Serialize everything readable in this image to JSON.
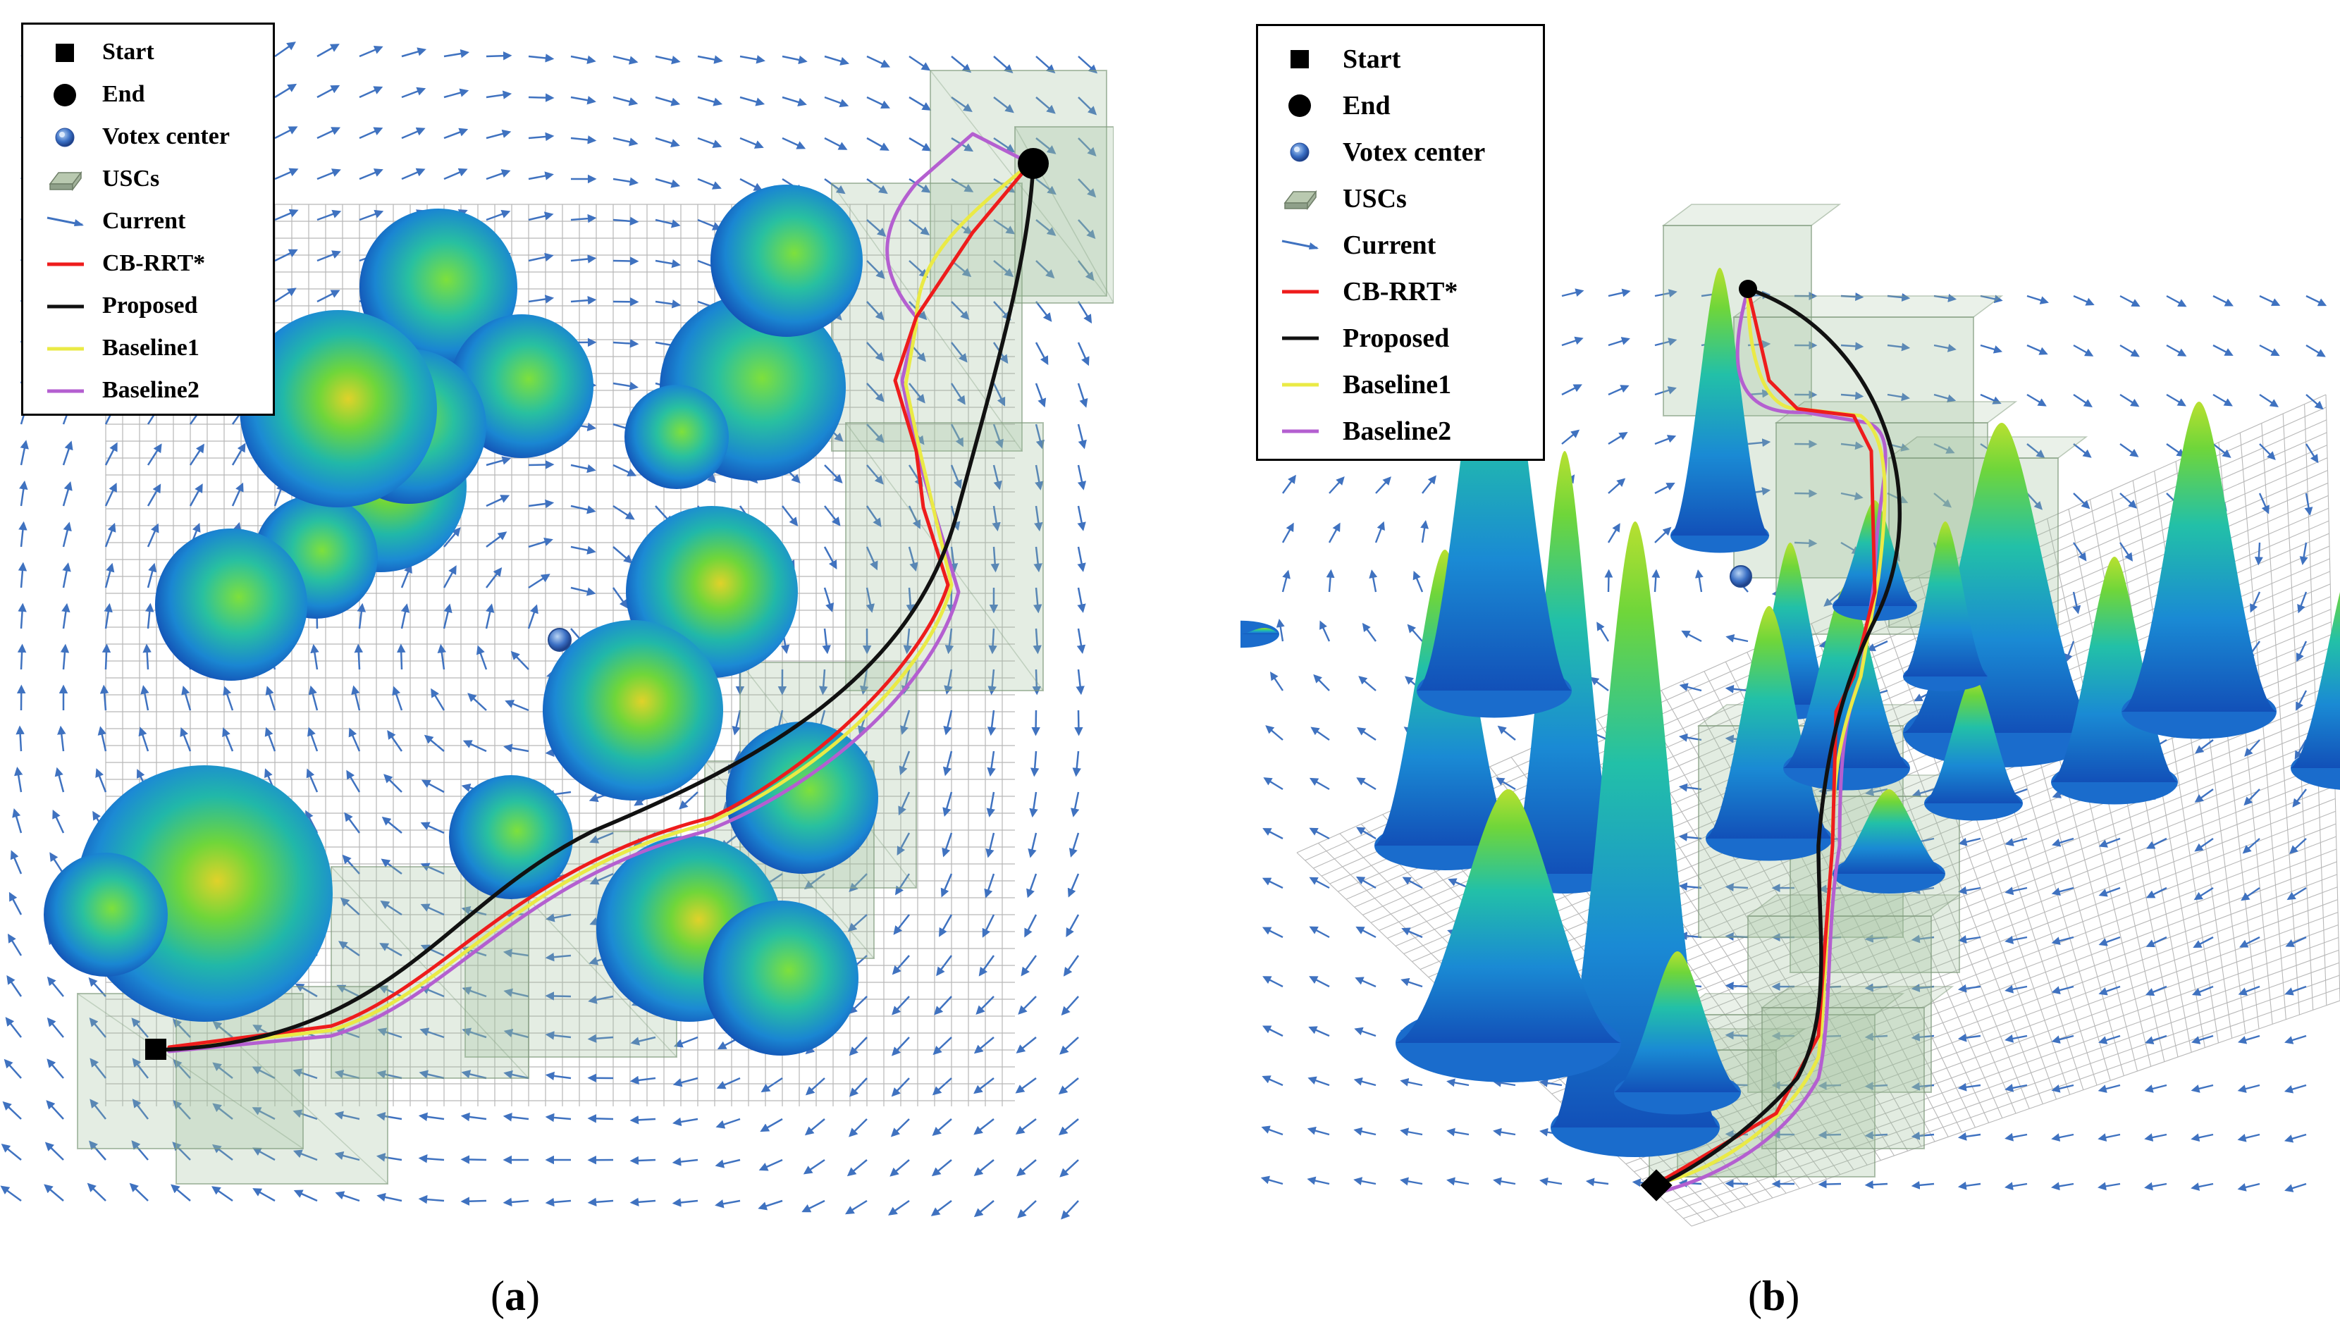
{
  "colors": {
    "current": "#3f72c0",
    "cb_rrt": "#ee1c1c",
    "proposed": "#111111",
    "baseline1": "#eaea45",
    "baseline2": "#b45fd0",
    "usc_fill": "#9fbf9c",
    "grid": "#b8b8b8"
  },
  "legend": {
    "items": [
      {
        "key": "start",
        "label": "Start",
        "icon": "black-square-marker"
      },
      {
        "key": "end",
        "label": "End",
        "icon": "black-circle-marker"
      },
      {
        "key": "vortex",
        "label": "Votex center",
        "icon": "blue-sphere-marker"
      },
      {
        "key": "uscs",
        "label": "USCs",
        "icon": "green-box-marker"
      },
      {
        "key": "current",
        "label": "Current",
        "icon": "blue-arrow-marker"
      },
      {
        "key": "cb_rrt",
        "label": "CB-RRT*",
        "icon": "red-line-marker"
      },
      {
        "key": "proposed",
        "label": "Proposed",
        "icon": "black-line-marker"
      },
      {
        "key": "baseline1",
        "label": "Baseline1",
        "icon": "yellow-line-marker"
      },
      {
        "key": "baseline2",
        "label": "Baseline2",
        "icon": "purple-line-marker"
      }
    ]
  },
  "panels": [
    {
      "id": "a",
      "caption_open": "(",
      "caption_letter": "a",
      "caption_close": ")",
      "view": "top-down"
    },
    {
      "id": "b",
      "caption_open": "(",
      "caption_letter": "b",
      "caption_close": ")",
      "view": "perspective-3d"
    }
  ],
  "chart_data": [
    {
      "type": "scatter",
      "title": "",
      "xlabel": "",
      "ylabel": "",
      "grid": true,
      "legend_position": "top-left",
      "series": [
        {
          "name": "CB-RRT*",
          "kind": "path"
        },
        {
          "name": "Proposed",
          "kind": "path"
        },
        {
          "name": "Baseline1",
          "kind": "path"
        },
        {
          "name": "Baseline2",
          "kind": "path"
        }
      ]
    },
    {
      "type": "scatter",
      "title": "",
      "xlabel": "",
      "ylabel": "",
      "grid": true,
      "legend_position": "top-left",
      "series": [
        {
          "name": "CB-RRT*",
          "kind": "path"
        },
        {
          "name": "Proposed",
          "kind": "path"
        },
        {
          "name": "Baseline1",
          "kind": "path"
        },
        {
          "name": "Baseline2",
          "kind": "path"
        }
      ]
    }
  ]
}
